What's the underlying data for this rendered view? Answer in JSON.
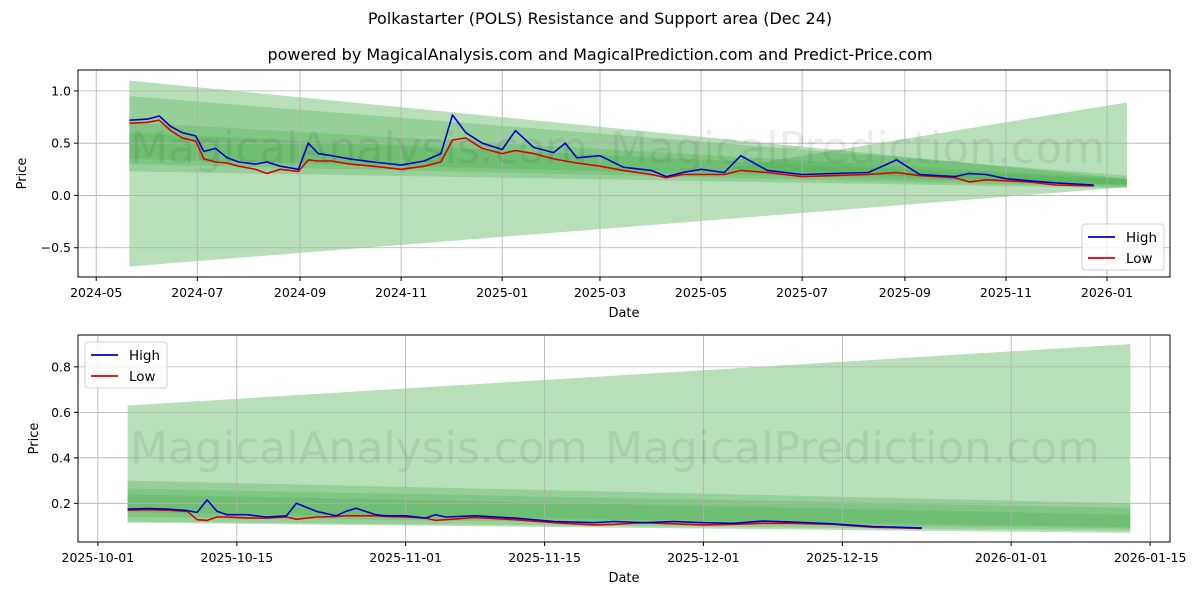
{
  "header": {
    "title": "Polkastarter (POLS) Resistance and Support area (Dec 24)",
    "subtitle": "powered by MagicalAnalysis.com and MagicalPrediction.com and Predict-Price.com"
  },
  "watermarks": [
    "MagicalAnalysis.com",
    "MagicalPrediction.com"
  ],
  "colors": {
    "high": "#0000cc",
    "low": "#dd0000",
    "band": "#4caf50",
    "grid": "#b0b0b0"
  },
  "chart_data": [
    {
      "type": "line",
      "title": "Polkastarter (POLS) Resistance and Support area (Dec 24)",
      "xlabel": "Date",
      "ylabel": "Price",
      "ylim": [
        -0.78,
        1.2
      ],
      "xlim": [
        "2024-04-20",
        "2026-02-08"
      ],
      "grid": true,
      "legend_position": "lower right",
      "legend": [
        "High",
        "Low"
      ],
      "xticks": [
        "2024-05",
        "2024-07",
        "2024-09",
        "2024-11",
        "2025-01",
        "2025-03",
        "2025-05",
        "2025-07",
        "2025-09",
        "2025-11",
        "2026-01"
      ],
      "yticks": [
        "-0.5",
        "0.0",
        "0.5",
        "1.0"
      ],
      "x": [
        "2024-05-21",
        "2024-06-01",
        "2024-06-08",
        "2024-06-15",
        "2024-06-22",
        "2024-06-30",
        "2024-07-05",
        "2024-07-12",
        "2024-07-19",
        "2024-07-26",
        "2024-08-05",
        "2024-08-12",
        "2024-08-20",
        "2024-08-31",
        "2024-09-06",
        "2024-09-12",
        "2024-09-20",
        "2024-10-01",
        "2024-10-15",
        "2024-11-01",
        "2024-11-15",
        "2024-11-25",
        "2024-12-02",
        "2024-12-10",
        "2024-12-20",
        "2025-01-01",
        "2025-01-09",
        "2025-01-20",
        "2025-02-01",
        "2025-02-08",
        "2025-02-15",
        "2025-03-01",
        "2025-03-15",
        "2025-04-01",
        "2025-04-10",
        "2025-04-20",
        "2025-05-01",
        "2025-05-15",
        "2025-05-25",
        "2025-06-10",
        "2025-07-01",
        "2025-07-20",
        "2025-08-10",
        "2025-08-27",
        "2025-09-10",
        "2025-10-01",
        "2025-10-10",
        "2025-10-20",
        "2025-11-01",
        "2025-11-15",
        "2025-12-01",
        "2025-12-24"
      ],
      "series": [
        {
          "name": "High",
          "values": [
            0.72,
            0.73,
            0.76,
            0.66,
            0.6,
            0.57,
            0.42,
            0.45,
            0.36,
            0.32,
            0.3,
            0.32,
            0.28,
            0.25,
            0.5,
            0.4,
            0.38,
            0.35,
            0.32,
            0.29,
            0.33,
            0.4,
            0.77,
            0.6,
            0.5,
            0.44,
            0.62,
            0.46,
            0.41,
            0.5,
            0.36,
            0.38,
            0.27,
            0.24,
            0.18,
            0.22,
            0.25,
            0.22,
            0.38,
            0.24,
            0.2,
            0.21,
            0.22,
            0.34,
            0.2,
            0.18,
            0.21,
            0.2,
            0.16,
            0.14,
            0.12,
            0.1
          ]
        },
        {
          "name": "Low",
          "values": [
            0.69,
            0.7,
            0.72,
            0.62,
            0.55,
            0.52,
            0.35,
            0.32,
            0.31,
            0.28,
            0.25,
            0.21,
            0.25,
            0.23,
            0.34,
            0.33,
            0.33,
            0.3,
            0.28,
            0.25,
            0.28,
            0.32,
            0.53,
            0.55,
            0.45,
            0.4,
            0.43,
            0.4,
            0.35,
            0.33,
            0.31,
            0.28,
            0.24,
            0.2,
            0.17,
            0.2,
            0.2,
            0.2,
            0.24,
            0.22,
            0.18,
            0.19,
            0.2,
            0.22,
            0.19,
            0.17,
            0.13,
            0.15,
            0.14,
            0.13,
            0.1,
            0.09
          ]
        }
      ],
      "bands": [
        {
          "name": "outer-resistance-support",
          "start": "2024-05-21",
          "end": "2026-01-13",
          "start_range": [
            -0.68,
            1.1
          ],
          "end_range": [
            0.08,
            0.16
          ],
          "opacity": 0.4
        },
        {
          "name": "mid-band",
          "start": "2024-05-21",
          "end": "2026-01-13",
          "start_range": [
            0.23,
            0.95
          ],
          "end_range": [
            0.07,
            0.19
          ],
          "opacity": 0.3
        },
        {
          "name": "inner-band",
          "start": "2024-05-21",
          "end": "2026-01-13",
          "start_range": [
            0.3,
            0.7
          ],
          "end_range": [
            0.08,
            0.16
          ],
          "opacity": 0.3
        },
        {
          "name": "core-band",
          "start": "2024-05-21",
          "end": "2026-01-13",
          "start_range": [
            0.35,
            0.6
          ],
          "end_range": [
            0.1,
            0.15
          ],
          "opacity": 0.3
        },
        {
          "name": "forecast-widening",
          "start": "2025-05-20",
          "end": "2026-01-13",
          "start_range": [
            0.25,
            0.27
          ],
          "end_range": [
            0.1,
            0.89
          ],
          "opacity": 0.4
        }
      ]
    },
    {
      "type": "line",
      "title": "",
      "xlabel": "Date",
      "ylabel": "Price",
      "ylim": [
        0.03,
        0.94
      ],
      "xlim": [
        "2025-09-29",
        "2026-01-17"
      ],
      "grid": true,
      "legend_position": "upper left",
      "legend": [
        "High",
        "Low"
      ],
      "xticks": [
        "2025-10-01",
        "2025-10-15",
        "2025-11-01",
        "2025-11-15",
        "2025-12-01",
        "2025-12-15",
        "2026-01-01",
        "2026-01-15"
      ],
      "yticks": [
        "0.2",
        "0.4",
        "0.6",
        "0.8"
      ],
      "x": [
        "2025-10-04",
        "2025-10-06",
        "2025-10-08",
        "2025-10-10",
        "2025-10-11",
        "2025-10-12",
        "2025-10-13",
        "2025-10-14",
        "2025-10-16",
        "2025-10-18",
        "2025-10-20",
        "2025-10-21",
        "2025-10-23",
        "2025-10-25",
        "2025-10-26",
        "2025-10-27",
        "2025-10-29",
        "2025-10-30",
        "2025-11-01",
        "2025-11-03",
        "2025-11-04",
        "2025-11-05",
        "2025-11-08",
        "2025-11-12",
        "2025-11-16",
        "2025-11-20",
        "2025-11-22",
        "2025-11-25",
        "2025-11-28",
        "2025-12-01",
        "2025-12-04",
        "2025-12-07",
        "2025-12-10",
        "2025-12-14",
        "2025-12-18",
        "2025-12-23"
      ],
      "series": [
        {
          "name": "High",
          "values": [
            0.175,
            0.177,
            0.175,
            0.168,
            0.16,
            0.215,
            0.165,
            0.15,
            0.15,
            0.14,
            0.145,
            0.2,
            0.165,
            0.145,
            0.165,
            0.178,
            0.15,
            0.145,
            0.145,
            0.135,
            0.15,
            0.14,
            0.145,
            0.135,
            0.12,
            0.115,
            0.12,
            0.115,
            0.12,
            0.115,
            0.112,
            0.122,
            0.118,
            0.11,
            0.098,
            0.092
          ]
        },
        {
          "name": "Low",
          "values": [
            0.17,
            0.172,
            0.17,
            0.165,
            0.128,
            0.125,
            0.14,
            0.14,
            0.135,
            0.135,
            0.14,
            0.13,
            0.14,
            0.142,
            0.145,
            0.145,
            0.145,
            0.142,
            0.14,
            0.135,
            0.125,
            0.128,
            0.138,
            0.128,
            0.115,
            0.105,
            0.108,
            0.115,
            0.11,
            0.105,
            0.108,
            0.112,
            0.112,
            0.108,
            0.095,
            0.09
          ]
        }
      ],
      "bands": [
        {
          "name": "outer-forecast",
          "start": "2025-10-04",
          "end": "2026-01-13",
          "start_range": [
            0.115,
            0.63
          ],
          "end_range": [
            0.07,
            0.9
          ],
          "opacity": 0.4
        },
        {
          "name": "mid-band",
          "start": "2025-10-04",
          "end": "2026-01-13",
          "start_range": [
            0.12,
            0.3
          ],
          "end_range": [
            0.08,
            0.2
          ],
          "opacity": 0.3
        },
        {
          "name": "inner-band",
          "start": "2025-10-04",
          "end": "2026-01-13",
          "start_range": [
            0.14,
            0.265
          ],
          "end_range": [
            0.09,
            0.18
          ],
          "opacity": 0.3
        },
        {
          "name": "core-band",
          "start": "2025-10-04",
          "end": "2026-01-13",
          "start_range": [
            0.16,
            0.24
          ],
          "end_range": [
            0.095,
            0.15
          ],
          "opacity": 0.3
        }
      ]
    }
  ]
}
